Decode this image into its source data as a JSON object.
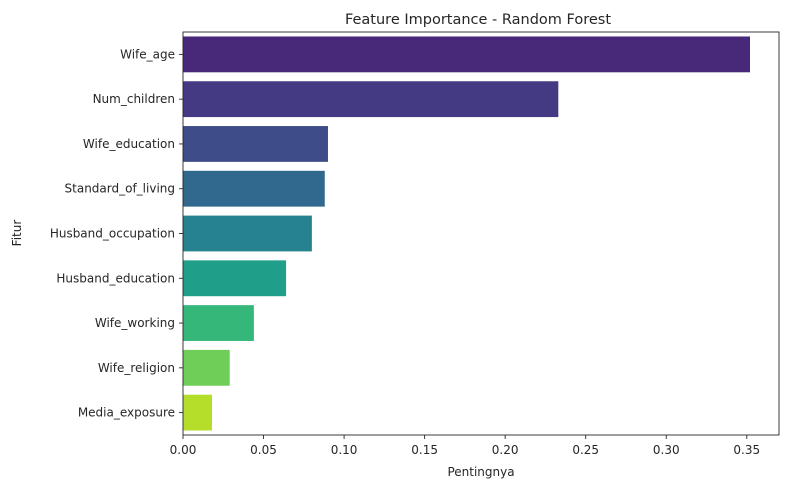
{
  "chart_data": {
    "type": "bar",
    "orientation": "horizontal",
    "title": "Feature Importance - Random Forest",
    "xlabel": "Pentingnya",
    "ylabel": "Fitur",
    "xlim": [
      0,
      0.37
    ],
    "xticks": [
      "0.00",
      "0.05",
      "0.10",
      "0.15",
      "0.20",
      "0.25",
      "0.30",
      "0.35"
    ],
    "grid": false,
    "legend": "none",
    "categories": [
      "Wife_age",
      "Num_children",
      "Wife_education",
      "Standard_of_living",
      "Husband_occupation",
      "Husband_education",
      "Wife_working",
      "Wife_religion",
      "Media_exposure"
    ],
    "values": [
      0.352,
      0.233,
      0.09,
      0.088,
      0.08,
      0.064,
      0.044,
      0.029,
      0.018
    ],
    "colors": [
      "#482878",
      "#443983",
      "#3e4c8a",
      "#31688e",
      "#26828e",
      "#1f9e89",
      "#35b779",
      "#6ece58",
      "#b5de2b"
    ]
  }
}
